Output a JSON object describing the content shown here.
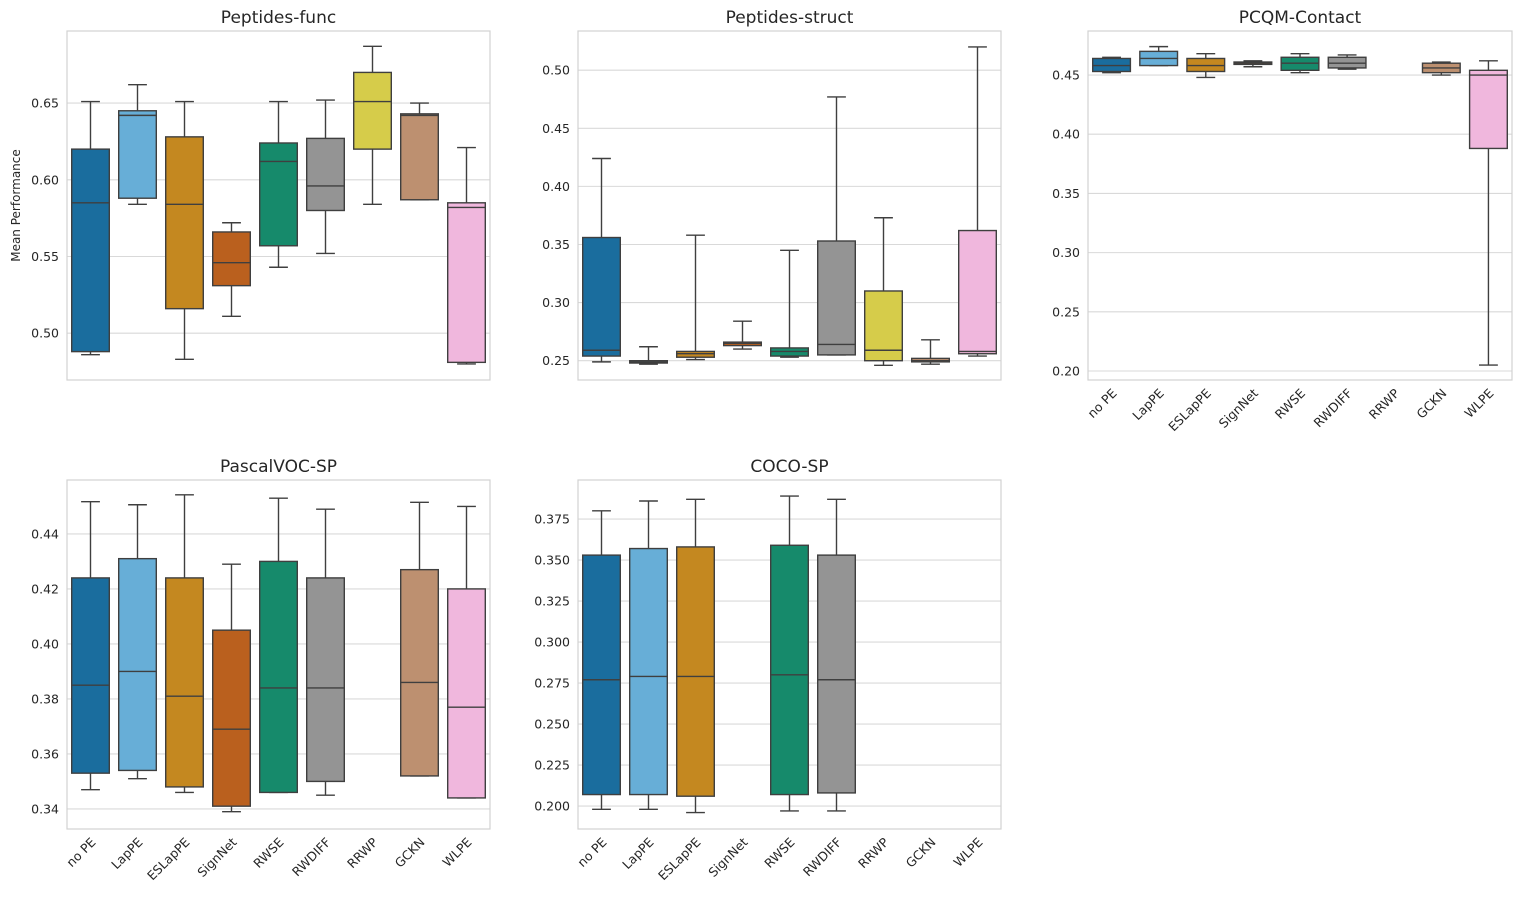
{
  "figure": {
    "categories": [
      "no PE",
      "LapPE",
      "ESLapPE",
      "SignNet",
      "RWSE",
      "RWDIFF",
      "RRWP",
      "GCKN",
      "WLPE"
    ],
    "palette": [
      "#1a6d9e",
      "#67aed7",
      "#c48820",
      "#ba601e",
      "#168a6b",
      "#949494",
      "#d6cc4a",
      "#bd9070",
      "#f0b7dd"
    ],
    "edge_color": "#3f3f3f",
    "grid_color": "#d9d9d9",
    "background": "#ffffff"
  },
  "chart_data": [
    {
      "type": "box",
      "title": "Peptides-func",
      "xlabel": "",
      "ylabel": "Mean Performance",
      "ylim": [
        0.4695,
        0.697
      ],
      "yticks": [
        "0.50",
        "0.55",
        "0.60",
        "0.65"
      ],
      "ytick_values": [
        0.5,
        0.55,
        0.6,
        0.65
      ],
      "show_xticklabels": false,
      "grid": true,
      "boxes": [
        {
          "category": "no PE",
          "whislo": 0.486,
          "q1": 0.488,
          "med": 0.585,
          "q3": 0.62,
          "whishi": 0.651
        },
        {
          "category": "LapPE",
          "whislo": 0.584,
          "q1": 0.588,
          "med": 0.642,
          "q3": 0.645,
          "whishi": 0.662
        },
        {
          "category": "ESLapPE",
          "whislo": 0.483,
          "q1": 0.516,
          "med": 0.584,
          "q3": 0.628,
          "whishi": 0.651
        },
        {
          "category": "SignNet",
          "whislo": 0.511,
          "q1": 0.531,
          "med": 0.546,
          "q3": 0.566,
          "whishi": 0.572
        },
        {
          "category": "RWSE",
          "whislo": 0.543,
          "q1": 0.557,
          "med": 0.612,
          "q3": 0.624,
          "whishi": 0.651
        },
        {
          "category": "RWDIFF",
          "whislo": 0.552,
          "q1": 0.58,
          "med": 0.596,
          "q3": 0.627,
          "whishi": 0.652
        },
        {
          "category": "RRWP",
          "whislo": 0.584,
          "q1": 0.62,
          "med": 0.651,
          "q3": 0.67,
          "whishi": 0.687
        },
        {
          "category": "GCKN",
          "whislo": 0.587,
          "q1": 0.587,
          "med": 0.642,
          "q3": 0.643,
          "whishi": 0.65
        },
        {
          "category": "WLPE",
          "whislo": 0.48,
          "q1": 0.481,
          "med": 0.582,
          "q3": 0.585,
          "whishi": 0.621
        }
      ]
    },
    {
      "type": "box",
      "title": "Peptides-struct",
      "xlabel": "",
      "ylabel": "",
      "ylim": [
        0.2334,
        0.5337
      ],
      "yticks": [
        "0.25",
        "0.30",
        "0.35",
        "0.40",
        "0.45",
        "0.50"
      ],
      "ytick_values": [
        0.25,
        0.3,
        0.35,
        0.4,
        0.45,
        0.5
      ],
      "show_xticklabels": false,
      "grid": true,
      "boxes": [
        {
          "category": "no PE",
          "whislo": 0.249,
          "q1": 0.254,
          "med": 0.259,
          "q3": 0.356,
          "whishi": 0.424
        },
        {
          "category": "LapPE",
          "whislo": 0.247,
          "q1": 0.248,
          "med": 0.249,
          "q3": 0.25,
          "whishi": 0.262
        },
        {
          "category": "ESLapPE",
          "whislo": 0.251,
          "q1": 0.253,
          "med": 0.256,
          "q3": 0.258,
          "whishi": 0.358
        },
        {
          "category": "SignNet",
          "whislo": 0.26,
          "q1": 0.263,
          "med": 0.265,
          "q3": 0.266,
          "whishi": 0.284
        },
        {
          "category": "RWSE",
          "whislo": 0.253,
          "q1": 0.254,
          "med": 0.258,
          "q3": 0.261,
          "whishi": 0.345
        },
        {
          "category": "RWDIFF",
          "whislo": 0.255,
          "q1": 0.255,
          "med": 0.264,
          "q3": 0.353,
          "whishi": 0.477
        },
        {
          "category": "RRWP",
          "whislo": 0.246,
          "q1": 0.25,
          "med": 0.259,
          "q3": 0.31,
          "whishi": 0.373
        },
        {
          "category": "GCKN",
          "whislo": 0.247,
          "q1": 0.249,
          "med": 0.25,
          "q3": 0.252,
          "whishi": 0.268
        },
        {
          "category": "WLPE",
          "whislo": 0.254,
          "q1": 0.256,
          "med": 0.258,
          "q3": 0.362,
          "whishi": 0.52
        }
      ]
    },
    {
      "type": "box",
      "title": "PCQM-Contact",
      "xlabel": "",
      "ylabel": "",
      "ylim": [
        0.1924,
        0.4872
      ],
      "yticks": [
        "0.20",
        "0.25",
        "0.30",
        "0.35",
        "0.40",
        "0.45"
      ],
      "ytick_values": [
        0.2,
        0.25,
        0.3,
        0.35,
        0.4,
        0.45
      ],
      "show_xticklabels": true,
      "grid": true,
      "boxes": [
        {
          "category": "no PE",
          "whislo": 0.452,
          "q1": 0.453,
          "med": 0.458,
          "q3": 0.464,
          "whishi": 0.465
        },
        {
          "category": "LapPE",
          "whislo": 0.458,
          "q1": 0.458,
          "med": 0.464,
          "q3": 0.47,
          "whishi": 0.474
        },
        {
          "category": "ESLapPE",
          "whislo": 0.448,
          "q1": 0.453,
          "med": 0.458,
          "q3": 0.464,
          "whishi": 0.468
        },
        {
          "category": "SignNet",
          "whislo": 0.457,
          "q1": 0.459,
          "med": 0.46,
          "q3": 0.461,
          "whishi": 0.462
        },
        {
          "category": "RWSE",
          "whislo": 0.452,
          "q1": 0.454,
          "med": 0.46,
          "q3": 0.465,
          "whishi": 0.468
        },
        {
          "category": "RWDIFF",
          "whislo": 0.455,
          "q1": 0.456,
          "med": 0.46,
          "q3": 0.465,
          "whishi": 0.467
        },
        {
          "category": "RRWP",
          "whislo": null,
          "q1": null,
          "med": null,
          "q3": null,
          "whishi": null
        },
        {
          "category": "GCKN",
          "whislo": 0.45,
          "q1": 0.452,
          "med": 0.456,
          "q3": 0.46,
          "whishi": 0.461
        },
        {
          "category": "WLPE",
          "whislo": 0.205,
          "q1": 0.388,
          "med": 0.45,
          "q3": 0.454,
          "whishi": 0.462
        }
      ]
    },
    {
      "type": "box",
      "title": "PascalVOC-SP",
      "xlabel": "",
      "ylabel": "",
      "ylim": [
        0.3327,
        0.4596
      ],
      "yticks": [
        "0.34",
        "0.36",
        "0.38",
        "0.40",
        "0.42",
        "0.44"
      ],
      "ytick_values": [
        0.34,
        0.36,
        0.38,
        0.4,
        0.42,
        0.44
      ],
      "show_xticklabels": true,
      "grid": true,
      "boxes": [
        {
          "category": "no PE",
          "whislo": 0.347,
          "q1": 0.353,
          "med": 0.385,
          "q3": 0.424,
          "whishi": 0.4517
        },
        {
          "category": "LapPE",
          "whislo": 0.351,
          "q1": 0.354,
          "med": 0.39,
          "q3": 0.431,
          "whishi": 0.4506
        },
        {
          "category": "ESLapPE",
          "whislo": 0.346,
          "q1": 0.348,
          "med": 0.381,
          "q3": 0.424,
          "whishi": 0.4542
        },
        {
          "category": "SignNet",
          "whislo": 0.339,
          "q1": 0.341,
          "med": 0.369,
          "q3": 0.405,
          "whishi": 0.429
        },
        {
          "category": "RWSE",
          "whislo": 0.346,
          "q1": 0.346,
          "med": 0.384,
          "q3": 0.43,
          "whishi": 0.453
        },
        {
          "category": "RWDIFF",
          "whislo": 0.345,
          "q1": 0.35,
          "med": 0.384,
          "q3": 0.424,
          "whishi": 0.449
        },
        {
          "category": "RRWP",
          "whislo": null,
          "q1": null,
          "med": null,
          "q3": null,
          "whishi": null
        },
        {
          "category": "GCKN",
          "whislo": 0.352,
          "q1": 0.352,
          "med": 0.386,
          "q3": 0.427,
          "whishi": 0.4515
        },
        {
          "category": "WLPE",
          "whislo": 0.344,
          "q1": 0.344,
          "med": 0.377,
          "q3": 0.42,
          "whishi": 0.45
        }
      ]
    },
    {
      "type": "box",
      "title": "COCO-SP",
      "xlabel": "",
      "ylabel": "",
      "ylim": [
        0.186,
        0.3988
      ],
      "yticks": [
        "0.200",
        "0.225",
        "0.250",
        "0.275",
        "0.300",
        "0.325",
        "0.350",
        "0.375"
      ],
      "ytick_values": [
        0.2,
        0.225,
        0.25,
        0.275,
        0.3,
        0.325,
        0.35,
        0.375
      ],
      "show_xticklabels": true,
      "grid": true,
      "boxes": [
        {
          "category": "no PE",
          "whislo": 0.198,
          "q1": 0.207,
          "med": 0.277,
          "q3": 0.353,
          "whishi": 0.38
        },
        {
          "category": "LapPE",
          "whislo": 0.198,
          "q1": 0.207,
          "med": 0.279,
          "q3": 0.357,
          "whishi": 0.386
        },
        {
          "category": "ESLapPE",
          "whislo": 0.196,
          "q1": 0.206,
          "med": 0.279,
          "q3": 0.358,
          "whishi": 0.387
        },
        {
          "category": "SignNet",
          "whislo": null,
          "q1": null,
          "med": null,
          "q3": null,
          "whishi": null
        },
        {
          "category": "RWSE",
          "whislo": 0.197,
          "q1": 0.207,
          "med": 0.28,
          "q3": 0.359,
          "whishi": 0.389
        },
        {
          "category": "RWDIFF",
          "whislo": 0.197,
          "q1": 0.208,
          "med": 0.277,
          "q3": 0.353,
          "whishi": 0.387
        },
        {
          "category": "RRWP",
          "whislo": null,
          "q1": null,
          "med": null,
          "q3": null,
          "whishi": null
        },
        {
          "category": "GCKN",
          "whislo": null,
          "q1": null,
          "med": null,
          "q3": null,
          "whishi": null
        },
        {
          "category": "WLPE",
          "whislo": null,
          "q1": null,
          "med": null,
          "q3": null,
          "whishi": null
        }
      ]
    }
  ]
}
